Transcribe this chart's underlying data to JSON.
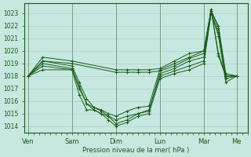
{
  "background_color": "#c6e8e0",
  "grid_color": "#a8ccbe",
  "line_color": "#1a5c1a",
  "marker_color": "#1a5c1a",
  "ylabel_ticks": [
    1014,
    1015,
    1016,
    1017,
    1018,
    1019,
    1020,
    1021,
    1022,
    1023
  ],
  "ylim": [
    1013.5,
    1023.8
  ],
  "xlabel": "Pression niveau de la mer( hPa )",
  "day_labels": [
    "Ven",
    "Sam",
    "Dim",
    "Lun",
    "Mar",
    "Me"
  ],
  "day_positions": [
    0,
    24,
    48,
    72,
    96,
    114
  ],
  "xlim": [
    -2,
    120
  ],
  "series": [
    {
      "x": [
        0,
        8,
        24,
        48,
        54,
        60,
        66,
        72,
        80,
        88,
        96,
        100,
        104,
        108,
        114
      ],
      "y": [
        1018.0,
        1019.5,
        1019.2,
        1018.5,
        1018.5,
        1018.5,
        1018.5,
        1018.6,
        1019.2,
        1019.8,
        1020.0,
        1023.3,
        1019.8,
        1018.0,
        1018.0
      ]
    },
    {
      "x": [
        0,
        8,
        24,
        48,
        54,
        60,
        66,
        72,
        80,
        88,
        96,
        100,
        104,
        108,
        114
      ],
      "y": [
        1018.0,
        1019.2,
        1019.0,
        1018.3,
        1018.3,
        1018.3,
        1018.3,
        1018.4,
        1018.8,
        1019.4,
        1019.8,
        1023.3,
        1019.6,
        1018.0,
        1018.0
      ]
    },
    {
      "x": [
        0,
        8,
        24,
        28,
        32,
        36,
        40,
        44,
        48,
        54,
        60,
        66,
        72,
        80,
        88,
        96,
        100,
        104,
        108,
        114
      ],
      "y": [
        1018.0,
        1019.2,
        1018.8,
        1017.5,
        1016.2,
        1015.5,
        1015.3,
        1015.0,
        1014.8,
        1015.2,
        1015.5,
        1015.6,
        1018.5,
        1019.0,
        1019.5,
        1020.0,
        1023.2,
        1022.0,
        1018.2,
        1018.0
      ]
    },
    {
      "x": [
        0,
        8,
        24,
        28,
        32,
        36,
        40,
        44,
        48,
        54,
        60,
        66,
        72,
        80,
        88,
        96,
        100,
        104,
        108,
        114
      ],
      "y": [
        1018.0,
        1019.0,
        1018.6,
        1017.2,
        1015.8,
        1015.3,
        1015.0,
        1014.8,
        1014.5,
        1014.8,
        1015.0,
        1015.2,
        1018.2,
        1018.6,
        1019.2,
        1019.5,
        1023.2,
        1021.8,
        1018.0,
        1018.0
      ]
    },
    {
      "x": [
        0,
        8,
        24,
        28,
        32,
        36,
        40,
        44,
        48,
        54,
        60,
        66,
        72,
        80,
        88,
        96,
        100,
        104,
        108,
        114
      ],
      "y": [
        1018.0,
        1018.8,
        1018.5,
        1017.0,
        1015.8,
        1015.5,
        1015.2,
        1014.8,
        1014.2,
        1014.5,
        1015.0,
        1015.3,
        1018.0,
        1018.4,
        1018.8,
        1019.2,
        1023.0,
        1021.5,
        1017.8,
        1018.0
      ]
    },
    {
      "x": [
        0,
        8,
        24,
        28,
        32,
        36,
        40,
        44,
        48,
        54,
        60,
        66,
        72,
        80,
        88,
        96,
        100,
        104,
        108,
        114
      ],
      "y": [
        1018.0,
        1018.5,
        1018.5,
        1016.5,
        1015.3,
        1015.3,
        1015.0,
        1014.5,
        1014.0,
        1014.3,
        1014.8,
        1015.0,
        1017.8,
        1018.2,
        1018.5,
        1019.0,
        1023.0,
        1021.2,
        1017.5,
        1018.0
      ]
    }
  ]
}
